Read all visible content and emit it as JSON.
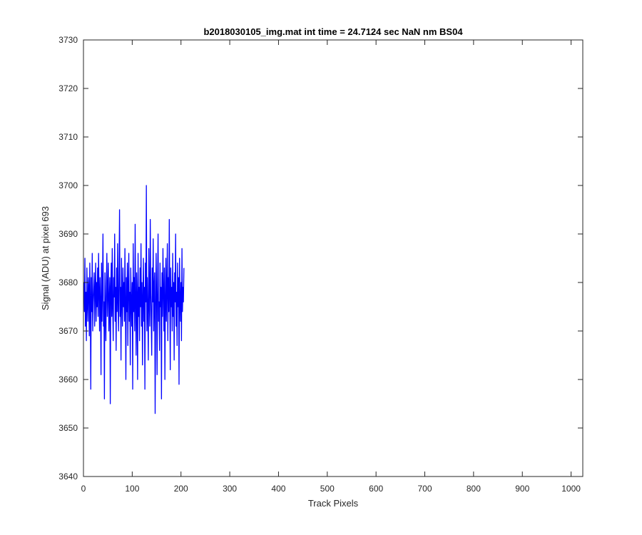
{
  "chart_data": {
    "type": "line",
    "title": "b2018030105_img.mat int time = 24.7124 sec  NaN nm BS04",
    "xlabel": "Track Pixels",
    "ylabel": "Signal (ADU) at pixel 693",
    "xlim": [
      0,
      1024
    ],
    "ylim": [
      3640,
      3730
    ],
    "xticks": [
      0,
      100,
      200,
      300,
      400,
      500,
      600,
      700,
      800,
      900,
      1000
    ],
    "yticks": [
      3640,
      3650,
      3660,
      3670,
      3680,
      3690,
      3700,
      3710,
      3720,
      3730
    ],
    "grid": false,
    "legend": "none",
    "series_color": "#0000ff",
    "series": [
      {
        "x_start": 1,
        "x_step": 1,
        "values": [
          3680,
          3674,
          3685,
          3671,
          3678,
          3668,
          3683,
          3676,
          3672,
          3681,
          3679,
          3669,
          3684,
          3677,
          3658,
          3681,
          3674,
          3686,
          3670,
          3676,
          3679,
          3682,
          3671,
          3678,
          3684,
          3672,
          3680,
          3675,
          3683,
          3673,
          3686,
          3678,
          3670,
          3681,
          3676,
          3661,
          3684,
          3672,
          3679,
          3690,
          3671,
          3676,
          3656,
          3682,
          3675,
          3668,
          3680,
          3686,
          3673,
          3678,
          3684,
          3670,
          3676,
          3681,
          3655,
          3679,
          3684,
          3673,
          3687,
          3675,
          3668,
          3681,
          3677,
          3690,
          3672,
          3679,
          3666,
          3683,
          3674,
          3688,
          3676,
          3670,
          3682,
          3695,
          3673,
          3679,
          3664,
          3685,
          3677,
          3671,
          3683,
          3675,
          3680,
          3672,
          3687,
          3676,
          3660,
          3681,
          3674,
          3684,
          3667,
          3679,
          3686,
          3672,
          3678,
          3663,
          3683,
          3676,
          3671,
          3680,
          3658,
          3688,
          3674,
          3681,
          3670,
          3692,
          3676,
          3665,
          3682,
          3677,
          3660,
          3686,
          3673,
          3679,
          3668,
          3683,
          3675,
          3688,
          3671,
          3680,
          3663,
          3677,
          3685,
          3672,
          3679,
          3658,
          3684,
          3676,
          3700,
          3670,
          3681,
          3674,
          3664,
          3687,
          3676,
          3671,
          3693,
          3678,
          3672,
          3665,
          3683,
          3676,
          3689,
          3670,
          3679,
          3682,
          3653,
          3674,
          3686,
          3677,
          3661,
          3680,
          3690,
          3672,
          3676,
          3666,
          3684,
          3675,
          3679,
          3656,
          3682,
          3673,
          3687,
          3678,
          3670,
          3683,
          3660,
          3676,
          3685,
          3672,
          3679,
          3688,
          3668,
          3681,
          3674,
          3693,
          3677,
          3662,
          3683,
          3675,
          3679,
          3670,
          3686,
          3673,
          3680,
          3664,
          3682,
          3676,
          3690,
          3671,
          3678,
          3667,
          3684,
          3675,
          3681,
          3659,
          3685,
          3677,
          3672,
          3680,
          3668,
          3687,
          3674,
          3679,
          3676,
          3683
        ],
        "name": ""
      }
    ]
  }
}
